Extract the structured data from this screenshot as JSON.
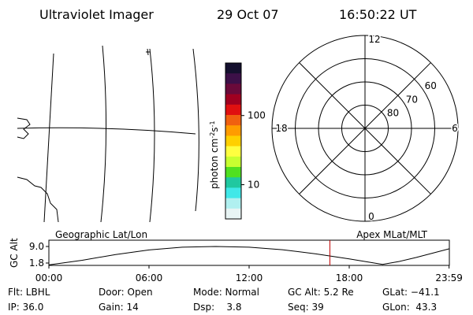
{
  "header": {
    "title": "Ultraviolet Imager",
    "date": "29 Oct 07",
    "time": "16:50:22 UT"
  },
  "colorbar": {
    "label": "photon cm",
    "exp1": "-2",
    "unit2": "s",
    "exp2": "-1",
    "log": true,
    "lim": [
      3.2,
      575
    ],
    "ticks": [
      10,
      100
    ],
    "colors": [
      "#14102e",
      "#3c1048",
      "#6a0a3a",
      "#a00020",
      "#e01010",
      "#f06010",
      "#ff9c00",
      "#ffd000",
      "#ffff40",
      "#c8ff30",
      "#50e020",
      "#20c8a0",
      "#40e8e8",
      "#b0f0f0",
      "#e8f4f4"
    ]
  },
  "polar": {
    "lat_rings": [
      60,
      70,
      80
    ],
    "outer_lat": 50,
    "mlt_labels": [
      "12",
      "18",
      "6",
      "0"
    ]
  },
  "chart_data": {
    "type": "line",
    "ylabel": "GC Alt",
    "left_label": "Geographic Lat/Lon",
    "right_label": "Apex MLat/MLT",
    "x": [
      0,
      2,
      4,
      6,
      8,
      10,
      12,
      14,
      16,
      18,
      19,
      20,
      21,
      22,
      24
    ],
    "values": [
      1.0,
      3.0,
      5.5,
      7.5,
      8.7,
      9.0,
      8.7,
      7.6,
      5.8,
      3.6,
      2.4,
      1.2,
      2.5,
      4.2,
      8.0
    ],
    "color": "#000000",
    "xlim": [
      0,
      24
    ],
    "xticks": [
      {
        "value": 0,
        "label": "00:00"
      },
      {
        "value": 6,
        "label": "06:00"
      },
      {
        "value": 12,
        "label": "12:00"
      },
      {
        "value": 18,
        "label": "18:00"
      },
      {
        "value": 23.983,
        "label": "23:59"
      }
    ],
    "ylim": [
      0.77,
      11.74
    ],
    "yticks": [
      {
        "value": 1.8,
        "label": "1.8"
      },
      {
        "value": 9.0,
        "label": "9.0"
      }
    ],
    "marker_x": 16.84,
    "marker_color": "#c00000"
  },
  "footer": {
    "rows": [
      [
        "Flt: LBHL",
        "Door: Open",
        "Mode: Normal",
        "GC Alt: 5.2 Re",
        "GLat: −41.1"
      ],
      [
        "IP: 36.0",
        "Gain: 14",
        "Dsp:    3.8",
        "Seq: 39",
        "GLon:  43.3"
      ]
    ]
  }
}
